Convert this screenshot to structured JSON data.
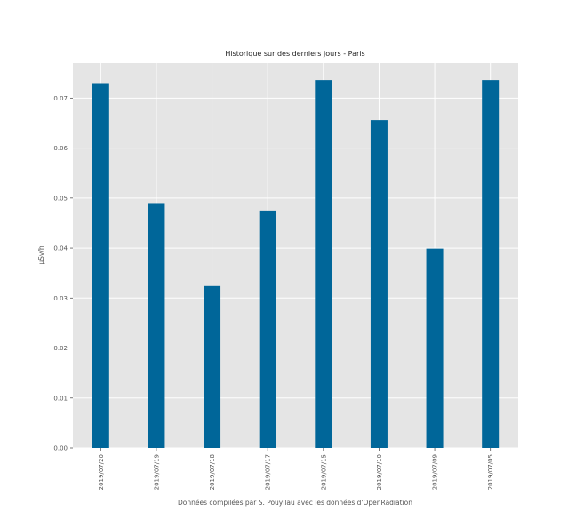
{
  "chart_data": {
    "type": "bar",
    "title": "Historique sur des derniers jours - Paris",
    "xlabel": "Données compilées par S. Pouyllau avec les données d'OpenRadiation",
    "ylabel": "µSv/h",
    "categories": [
      "2019/07/20",
      "2019/07/19",
      "2019/07/18",
      "2019/07/17",
      "2019/07/15",
      "2019/07/10",
      "2019/07/09",
      "2019/07/05"
    ],
    "values": [
      0.073,
      0.049,
      0.0324,
      0.0475,
      0.0736,
      0.0656,
      0.0399,
      0.0736
    ],
    "ylim": [
      0,
      0.077
    ],
    "yticks": [
      "0.00",
      "0.01",
      "0.02",
      "0.03",
      "0.04",
      "0.05",
      "0.06",
      "0.07"
    ],
    "grid": true,
    "style": {
      "bar_color": "#006699",
      "plot_background": "#e5e5e5",
      "grid_color": "#ffffff"
    }
  }
}
